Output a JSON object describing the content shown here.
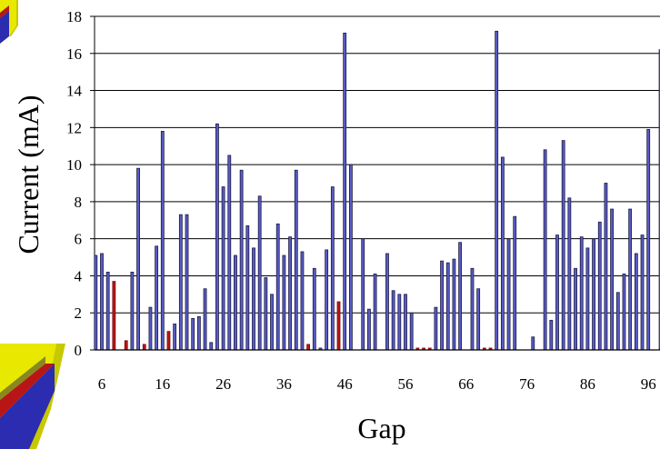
{
  "chart_data": {
    "type": "bar",
    "title": "",
    "xlabel": "Gap",
    "ylabel": "Current (mA)",
    "ylim": [
      0,
      18
    ],
    "yticks": [
      "0",
      "2",
      "4",
      "6",
      "8",
      "10",
      "12",
      "14",
      "16",
      "18"
    ],
    "xticks": [
      "6",
      "16",
      "26",
      "36",
      "46",
      "56",
      "66",
      "76",
      "86",
      "96"
    ],
    "xtick_values": [
      6,
      16,
      26,
      36,
      46,
      56,
      66,
      76,
      86,
      96
    ],
    "grid": "horizontal",
    "colors": {
      "series_blue": "#5a5cc8",
      "series_red": "#b81616",
      "outline": "#1a1a40"
    },
    "x": [
      5,
      6,
      7,
      8,
      9,
      10,
      11,
      12,
      13,
      14,
      15,
      16,
      17,
      18,
      19,
      20,
      21,
      22,
      23,
      24,
      25,
      26,
      27,
      28,
      29,
      30,
      31,
      32,
      33,
      34,
      35,
      36,
      37,
      38,
      39,
      40,
      41,
      42,
      43,
      44,
      45,
      46,
      47,
      48,
      49,
      50,
      51,
      52,
      53,
      54,
      55,
      56,
      57,
      58,
      59,
      60,
      61,
      62,
      63,
      64,
      65,
      66,
      67,
      68,
      69,
      70,
      71,
      72,
      73,
      74,
      75,
      76,
      77,
      78,
      79,
      80,
      81,
      82,
      83,
      84,
      85,
      86,
      87,
      88,
      89,
      90,
      91,
      92,
      93,
      94,
      95,
      96,
      97
    ],
    "values": [
      5.1,
      5.2,
      4.2,
      3.7,
      0,
      0.5,
      4.2,
      9.8,
      0.3,
      2.3,
      5.6,
      11.8,
      1.0,
      1.4,
      7.3,
      7.3,
      1.7,
      1.8,
      3.3,
      0.4,
      12.2,
      8.8,
      10.5,
      5.1,
      9.7,
      6.7,
      5.5,
      8.3,
      3.9,
      3.0,
      6.8,
      5.1,
      6.1,
      9.7,
      5.3,
      0.3,
      4.4,
      0.1,
      5.4,
      8.8,
      2.6,
      17.1,
      10.0,
      0,
      6.0,
      2.2,
      4.1,
      0,
      5.2,
      3.2,
      3.0,
      3.0,
      2.0,
      0.1,
      0.1,
      0.1,
      2.3,
      4.8,
      4.7,
      4.9,
      5.8,
      0,
      4.4,
      3.3,
      0.1,
      0.1,
      17.2,
      10.4,
      6.0,
      7.2,
      0,
      0,
      0.7,
      0,
      10.8,
      1.6,
      6.2,
      11.3,
      8.2,
      4.4,
      6.1,
      5.5,
      6.0,
      6.9,
      9.0,
      7.6,
      3.1,
      4.1,
      7.6,
      5.2,
      6.2,
      11.9,
      0
    ],
    "colors_per_bar": [
      "b",
      "b",
      "b",
      "r",
      "b",
      "r",
      "b",
      "b",
      "r",
      "b",
      "b",
      "b",
      "r",
      "b",
      "b",
      "b",
      "b",
      "b",
      "b",
      "b",
      "b",
      "b",
      "b",
      "b",
      "b",
      "b",
      "b",
      "b",
      "b",
      "b",
      "b",
      "b",
      "b",
      "b",
      "b",
      "r",
      "b",
      "b",
      "b",
      "b",
      "r",
      "b",
      "b",
      "b",
      "b",
      "b",
      "b",
      "b",
      "b",
      "b",
      "b",
      "b",
      "b",
      "r",
      "r",
      "r",
      "b",
      "b",
      "b",
      "b",
      "b",
      "b",
      "b",
      "b",
      "r",
      "r",
      "b",
      "b",
      "b",
      "b",
      "b",
      "b",
      "b",
      "b",
      "b",
      "b",
      "b",
      "b",
      "b",
      "b",
      "b",
      "b",
      "b",
      "b",
      "b",
      "b",
      "b",
      "b",
      "b",
      "b",
      "b",
      "b",
      "b"
    ],
    "extra_bars": [
      {
        "x": 98,
        "value": 16.2,
        "color": "b"
      }
    ]
  }
}
